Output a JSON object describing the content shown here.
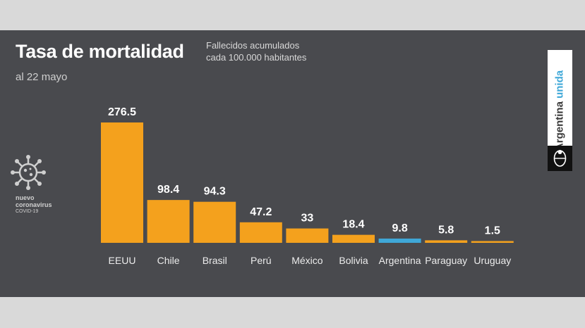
{
  "header": {
    "title": "Tasa de mortalidad",
    "subtitle_line1": "Fallecidos acumulados",
    "subtitle_line2": "cada 100.000 habitantes",
    "date": "al 22 mayo"
  },
  "badge": {
    "line1": "nuevo",
    "line2": "coronavirus",
    "line3": "COVID-19",
    "icon": "coronavirus-icon"
  },
  "brand": {
    "word1": "Argentina",
    "word2": "unida",
    "seal_icon": "argentina-seal-icon"
  },
  "colors": {
    "background": "#494a4e",
    "bar": "#f4a11d",
    "highlight": "#3fa8d8",
    "text": "#ffffff"
  },
  "chart_data": {
    "type": "bar",
    "title": "Tasa de mortalidad",
    "subtitle": "Fallecidos acumulados cada 100.000 habitantes",
    "xlabel": "",
    "ylabel": "",
    "ylim": [
      0,
      276.5
    ],
    "grid": false,
    "categories": [
      "EEUU",
      "Chile",
      "Brasil",
      "Perú",
      "México",
      "Bolivia",
      "Argentina",
      "Paraguay",
      "Uruguay"
    ],
    "values": [
      276.5,
      98.4,
      94.3,
      47.2,
      33,
      18.4,
      9.8,
      5.8,
      1.5
    ],
    "labels": [
      "276.5",
      "98.4",
      "94.3",
      "47.2",
      "33",
      "18.4",
      "9.8",
      "5.8",
      "1.5"
    ],
    "highlight_category": "Argentina"
  }
}
